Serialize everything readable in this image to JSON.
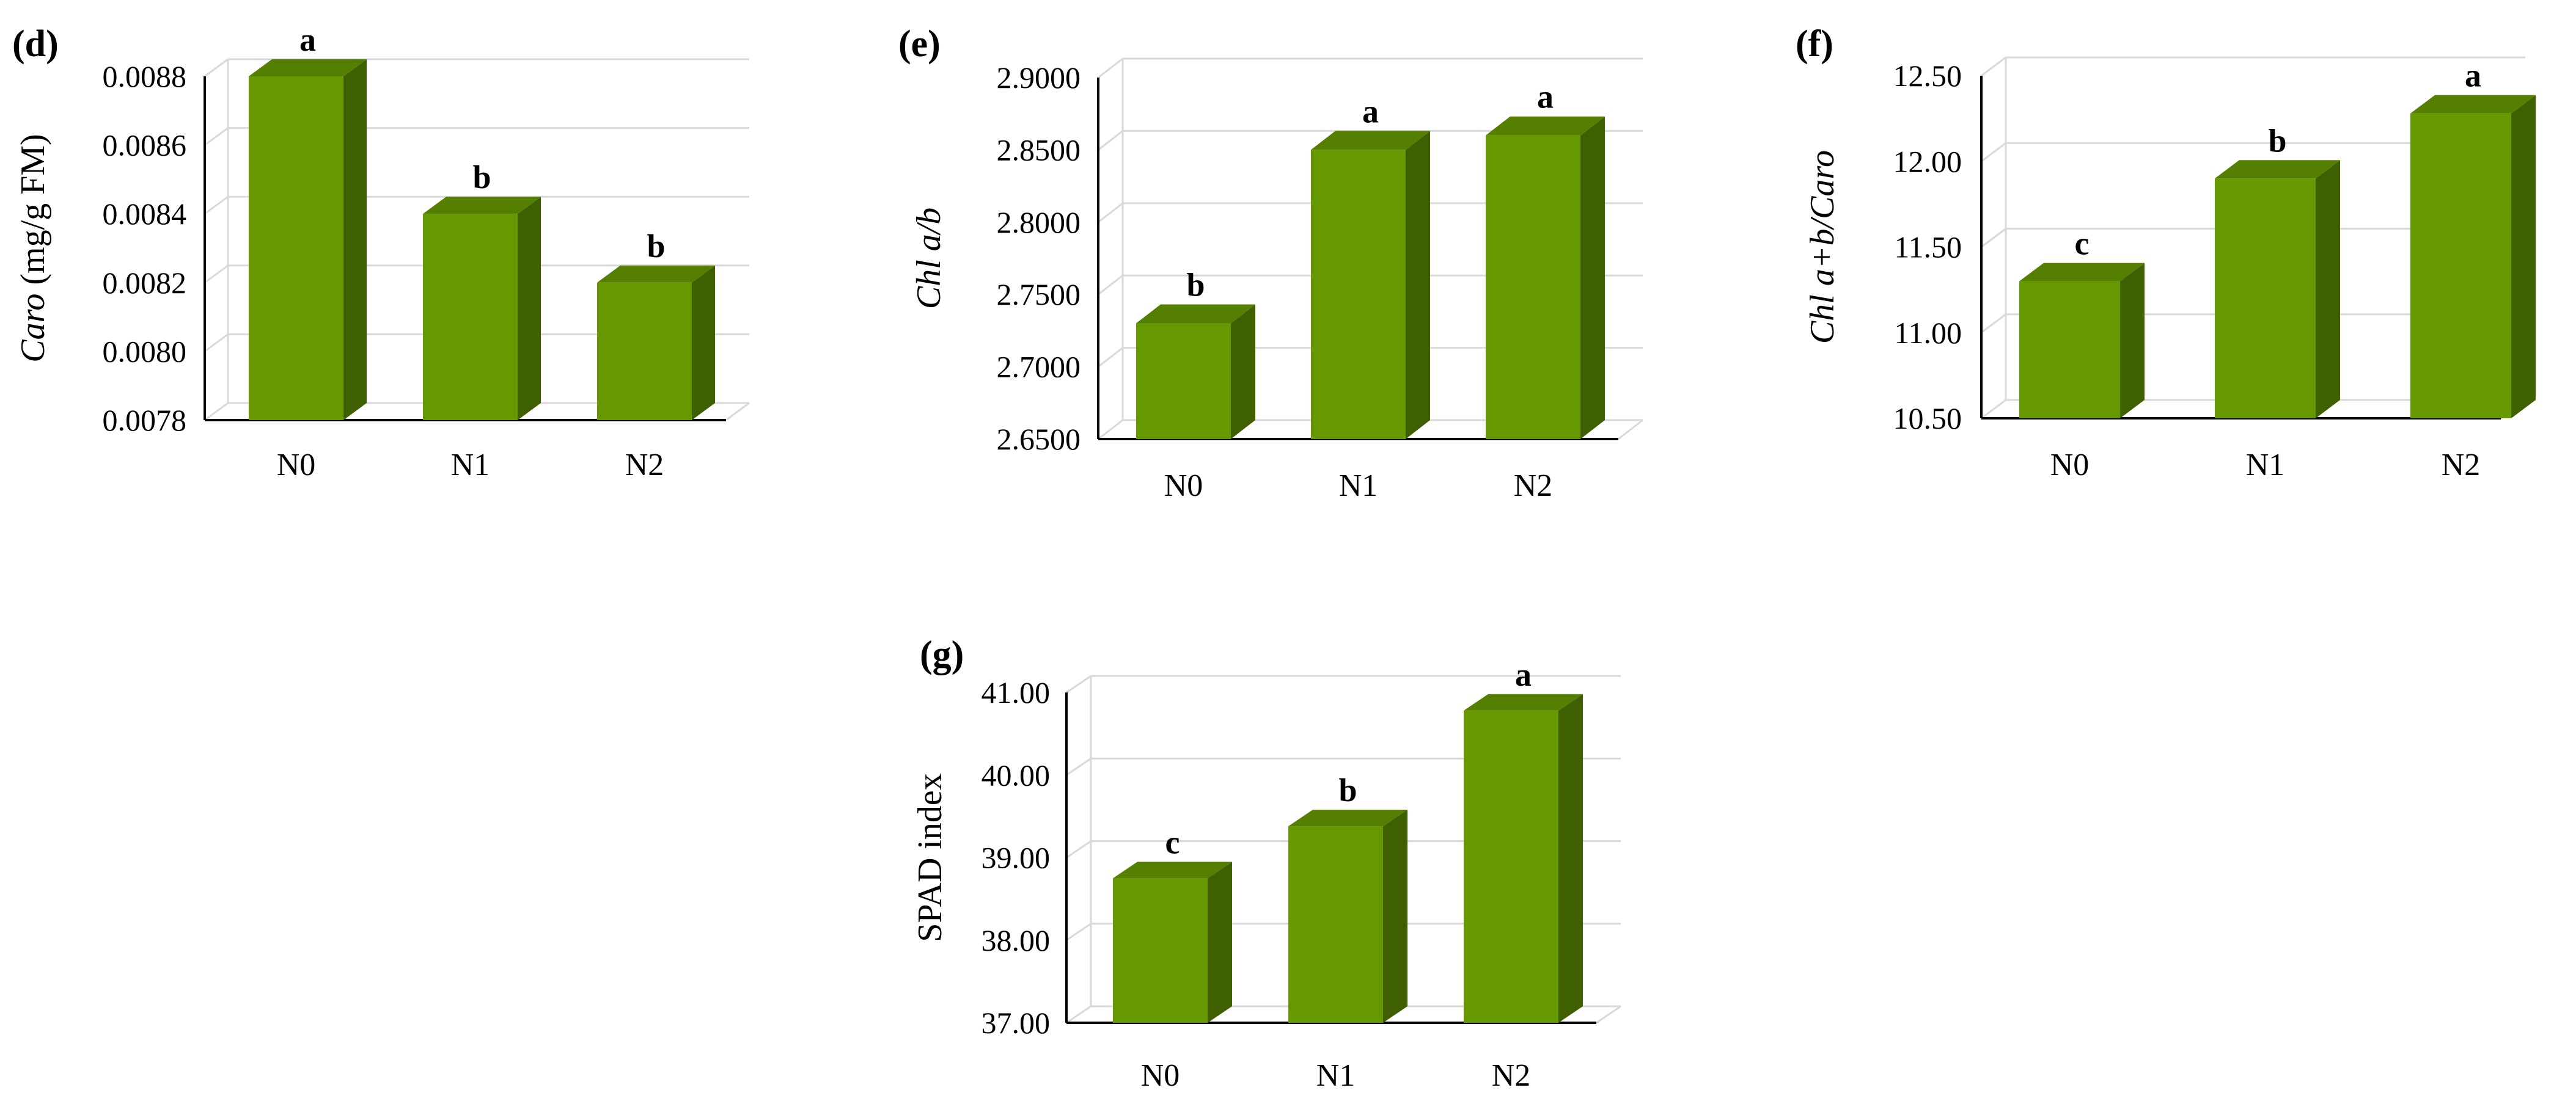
{
  "figure": {
    "colors": {
      "bar_front": "#669900",
      "bar_top": "#557f00",
      "bar_side": "#3f6000",
      "grid": "#d9d9d9",
      "axis": "#000000"
    }
  },
  "chart_data": [
    {
      "type": "bar",
      "id": "d",
      "panel_label": "(d)",
      "title": "",
      "categories": [
        "N0",
        "N1",
        "N2"
      ],
      "values": [
        0.0088,
        0.0084,
        0.0082
      ],
      "significance": [
        "a",
        "b",
        "b"
      ],
      "ylim": [
        0.0078,
        0.0088
      ],
      "yticks": [
        "0.0078",
        "0.0080",
        "0.0082",
        "0.0084",
        "0.0086",
        "0.0088"
      ],
      "ylabel": {
        "italic": "Caro",
        "rest": " (mg/g FM)"
      },
      "xlabel": "",
      "grid": true
    },
    {
      "type": "bar",
      "id": "e",
      "panel_label": "(e)",
      "title": "",
      "categories": [
        "N0",
        "N1",
        "N2"
      ],
      "values": [
        2.73,
        2.85,
        2.86
      ],
      "significance": [
        "b",
        "a",
        "a"
      ],
      "ylim": [
        2.65,
        2.9
      ],
      "yticks": [
        "2.6500",
        "2.7000",
        "2.7500",
        "2.8000",
        "2.8500",
        "2.9000"
      ],
      "ylabel": {
        "italic": "Chl a/b",
        "rest": ""
      },
      "xlabel": "",
      "grid": true
    },
    {
      "type": "bar",
      "id": "f",
      "panel_label": "(f)",
      "title": "",
      "categories": [
        "N0",
        "N1",
        "N2"
      ],
      "values": [
        11.3,
        11.9,
        12.28
      ],
      "significance": [
        "c",
        "b",
        "a"
      ],
      "ylim": [
        10.5,
        12.5
      ],
      "yticks": [
        "10.50",
        "11.00",
        "11.50",
        "12.00",
        "12.50"
      ],
      "ylabel": {
        "italic": "Chl a+b/Caro",
        "rest": ""
      },
      "xlabel": "",
      "grid": true
    },
    {
      "type": "bar",
      "id": "g",
      "panel_label": "(g)",
      "title": "",
      "categories": [
        "N0",
        "N1",
        "N2"
      ],
      "values": [
        38.75,
        39.38,
        40.78
      ],
      "significance": [
        "c",
        "b",
        "a"
      ],
      "ylim": [
        37.0,
        41.0
      ],
      "yticks": [
        "37.00",
        "38.00",
        "39.00",
        "40.00",
        "41.00"
      ],
      "ylabel": {
        "italic": "",
        "rest": "SPAD index"
      },
      "xlabel": "",
      "grid": true
    }
  ]
}
